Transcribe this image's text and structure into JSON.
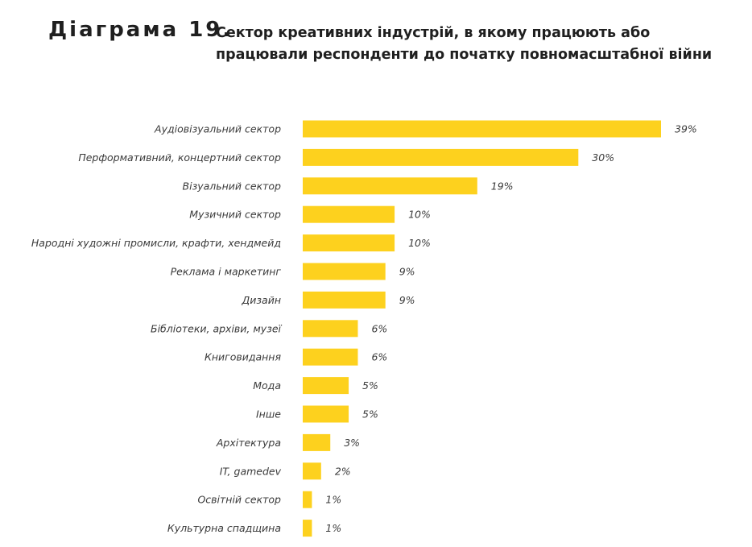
{
  "header": {
    "diagram_label": "Діаграма 19.",
    "title": "Сектор креативних індустрій, в якому працюють або працювали респонденти до початку повномасштабної війни"
  },
  "colors": {
    "bar": "#FDD11E",
    "text": "#3a3a3a"
  },
  "chart_data": {
    "type": "bar",
    "orientation": "horizontal",
    "categories": [
      "Аудіовізуальний сектор",
      "Перформативний, концертний сектор",
      "Візуальний сектор",
      "Музичний сектор",
      "Народні художні промисли, крафти, хендмейд",
      "Реклама і маркетинг",
      "Дизайн",
      "Бібліотеки, архіви, музеї",
      "Книговидання",
      "Мода",
      "Інше",
      "Архітектура",
      "IT, gamedev",
      "Освітній сектор",
      "Культурна спадщина"
    ],
    "values": [
      39,
      30,
      19,
      10,
      10,
      9,
      9,
      6,
      6,
      5,
      5,
      3,
      2,
      1,
      1
    ],
    "value_labels": [
      "39%",
      "30%",
      "19%",
      "10%",
      "10%",
      "9%",
      "9%",
      "6%",
      "6%",
      "5%",
      "5%",
      "3%",
      "2%",
      "1%",
      "1%"
    ],
    "unit": "%",
    "xlim": [
      0,
      39
    ],
    "grid": false,
    "legend": "none"
  }
}
